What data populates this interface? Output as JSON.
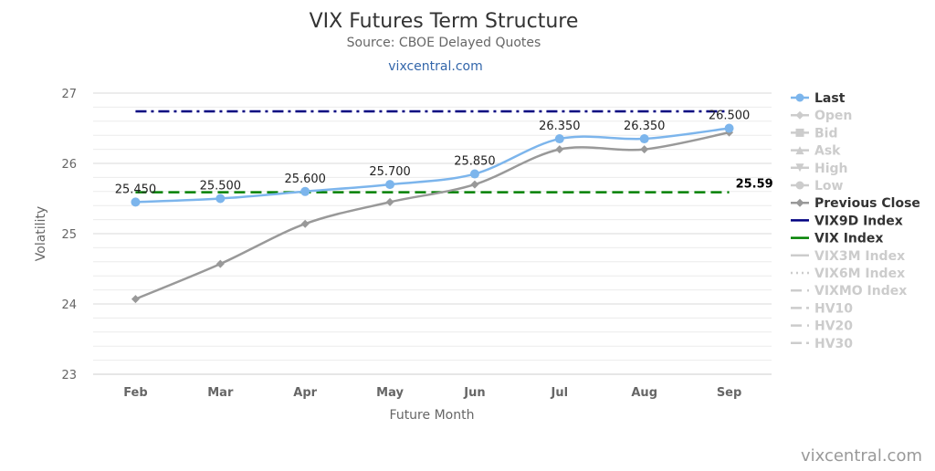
{
  "chart_data": {
    "type": "line",
    "title": "VIX Futures Term Structure",
    "subtitle": "Source: CBOE Delayed Quotes",
    "site_link": "vixcentral.com",
    "credit": "vixcentral.com",
    "xlabel": "Future Month",
    "ylabel": "Volatility",
    "categories": [
      "Feb",
      "Mar",
      "Apr",
      "May",
      "Jun",
      "Jul",
      "Aug",
      "Sep"
    ],
    "ylim": [
      23,
      27
    ],
    "y_ticks": [
      23,
      24,
      25,
      26,
      27
    ],
    "grid": true,
    "legend_position": "right",
    "series": [
      {
        "name": "Last",
        "color": "#7cb5ec",
        "marker": "circle",
        "data_labels": [
          "25.450",
          "25.500",
          "25.600",
          "25.700",
          "25.850",
          "26.350",
          "26.350",
          "26.500"
        ],
        "values": [
          25.45,
          25.5,
          25.6,
          25.7,
          25.85,
          26.35,
          26.35,
          26.5
        ]
      },
      {
        "name": "Previous Close",
        "color": "#999999",
        "marker": "diamond",
        "values": [
          24.07,
          24.57,
          25.14,
          25.45,
          25.7,
          26.2,
          26.2,
          26.44
        ]
      }
    ],
    "reference_lines": [
      {
        "name": "VIX9D Index",
        "value": 26.74,
        "color": "#000080",
        "dash": "dashdot",
        "label": ""
      },
      {
        "name": "VIX Index",
        "value": 25.59,
        "color": "#008000",
        "dash": "dash",
        "label": "25.59"
      }
    ],
    "legend_items": [
      {
        "label": "Last",
        "active": true,
        "symbol": "circle",
        "color": "#7cb5ec"
      },
      {
        "label": "Open",
        "active": false,
        "symbol": "diamond",
        "color": "#cccccc"
      },
      {
        "label": "Bid",
        "active": false,
        "symbol": "square",
        "color": "#cccccc"
      },
      {
        "label": "Ask",
        "active": false,
        "symbol": "triangle",
        "color": "#cccccc"
      },
      {
        "label": "High",
        "active": false,
        "symbol": "triangle-down",
        "color": "#cccccc"
      },
      {
        "label": "Low",
        "active": false,
        "symbol": "circle",
        "color": "#cccccc"
      },
      {
        "label": "Previous Close",
        "active": true,
        "symbol": "diamond",
        "color": "#999999"
      },
      {
        "label": "VIX9D Index",
        "active": true,
        "symbol": "line",
        "dash": "solid",
        "color": "#000080"
      },
      {
        "label": "VIX Index",
        "active": true,
        "symbol": "line",
        "dash": "solid",
        "color": "#008000"
      },
      {
        "label": "VIX3M Index",
        "active": false,
        "symbol": "line",
        "dash": "solid",
        "color": "#cccccc"
      },
      {
        "label": "VIX6M Index",
        "active": false,
        "symbol": "line",
        "dash": "dot",
        "color": "#cccccc"
      },
      {
        "label": "VIXMO Index",
        "active": false,
        "symbol": "line",
        "dash": "dash",
        "color": "#cccccc"
      },
      {
        "label": "HV10",
        "active": false,
        "symbol": "line",
        "dash": "dashdot",
        "color": "#cccccc"
      },
      {
        "label": "HV20",
        "active": false,
        "symbol": "line",
        "dash": "dash",
        "color": "#cccccc"
      },
      {
        "label": "HV30",
        "active": false,
        "symbol": "line",
        "dash": "dashdot",
        "color": "#cccccc"
      }
    ]
  }
}
